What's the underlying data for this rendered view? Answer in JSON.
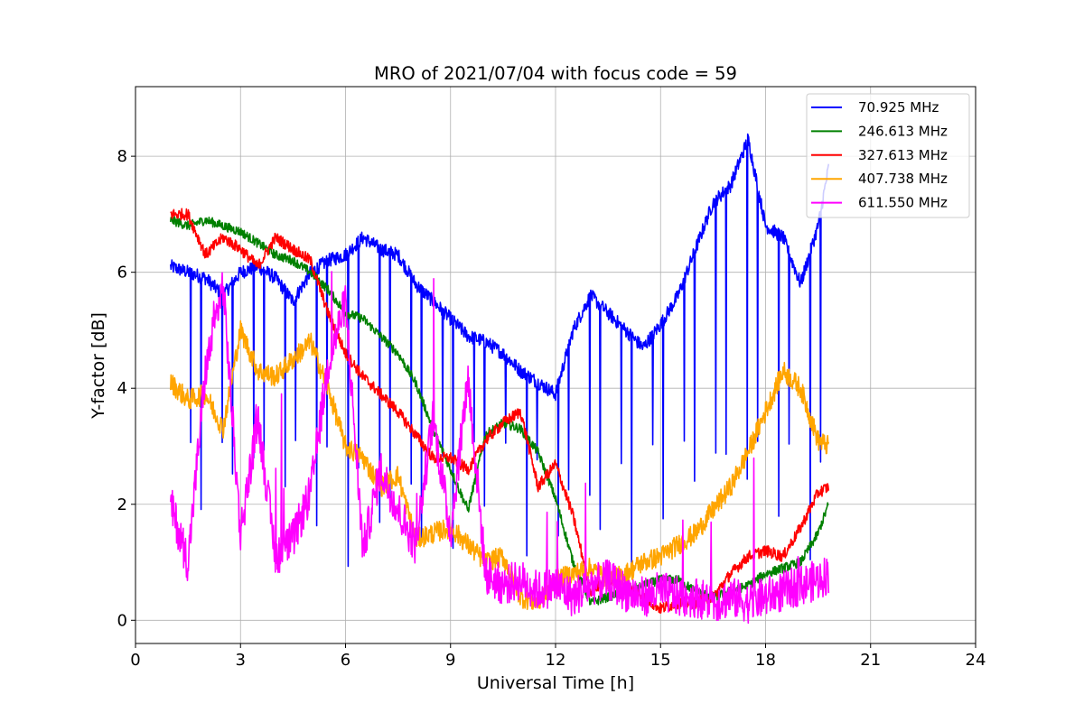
{
  "chart_data": {
    "type": "line",
    "title": "MRO of 2021/07/04 with focus code = 59",
    "xlabel": "Universal Time [h]",
    "ylabel": "Y-factor [dB]",
    "xlim": [
      0,
      24
    ],
    "ylim": [
      -0.4,
      9.2
    ],
    "xticks": [
      0,
      3,
      6,
      9,
      12,
      15,
      18,
      21,
      24
    ],
    "yticks": [
      0,
      2,
      4,
      6,
      8
    ],
    "grid": true,
    "legend_position": "upper-right",
    "series": [
      {
        "name": " 70.925 MHz",
        "color": "#0000ff",
        "dropouts": true,
        "x": [
          1.0,
          1.5,
          2.0,
          2.5,
          3.0,
          3.5,
          4.0,
          4.5,
          5.0,
          5.5,
          6.0,
          6.5,
          7.0,
          7.5,
          8.0,
          8.5,
          9.0,
          9.5,
          10.0,
          10.5,
          11.0,
          11.5,
          12.0,
          12.5,
          13.0,
          13.5,
          14.0,
          14.5,
          15.0,
          15.5,
          16.0,
          16.5,
          17.0,
          17.5,
          18.0,
          18.5,
          19.0,
          19.5,
          19.8
        ],
        "y": [
          6.1,
          6.0,
          5.9,
          5.6,
          6.0,
          6.1,
          5.9,
          5.5,
          6.0,
          6.2,
          6.3,
          6.6,
          6.4,
          6.3,
          5.8,
          5.5,
          5.2,
          4.9,
          4.8,
          4.6,
          4.3,
          4.1,
          3.9,
          5.0,
          5.6,
          5.3,
          5.0,
          4.7,
          5.1,
          5.6,
          6.4,
          7.2,
          7.5,
          8.3,
          6.8,
          6.6,
          5.8,
          6.8,
          7.8
        ]
      },
      {
        "name": "246.613 MHz",
        "color": "#008000",
        "x": [
          1.0,
          1.5,
          2.0,
          2.5,
          3.0,
          3.5,
          4.0,
          4.5,
          5.0,
          5.5,
          6.0,
          6.5,
          7.0,
          7.5,
          8.0,
          8.5,
          9.0,
          9.5,
          10.0,
          10.5,
          11.0,
          11.5,
          12.0,
          12.5,
          13.0,
          13.5,
          14.0,
          14.5,
          15.0,
          15.5,
          16.0,
          16.5,
          17.0,
          17.5,
          18.0,
          18.5,
          19.0,
          19.5,
          19.8
        ],
        "y": [
          6.9,
          6.8,
          6.9,
          6.8,
          6.7,
          6.5,
          6.3,
          6.2,
          6.0,
          5.7,
          5.3,
          5.2,
          4.9,
          4.6,
          4.1,
          3.3,
          2.6,
          1.9,
          3.2,
          3.4,
          3.3,
          2.9,
          2.1,
          1.0,
          0.3,
          0.4,
          0.5,
          0.6,
          0.7,
          0.7,
          0.5,
          0.4,
          0.5,
          0.6,
          0.8,
          0.9,
          1.0,
          1.5,
          2.0
        ]
      },
      {
        "name": "327.613 MHz",
        "color": "#ff0000",
        "x": [
          1.0,
          1.5,
          2.0,
          2.5,
          3.0,
          3.5,
          4.0,
          4.5,
          5.0,
          5.5,
          6.0,
          6.5,
          7.0,
          7.5,
          8.0,
          8.5,
          9.0,
          9.5,
          10.0,
          10.5,
          11.0,
          11.5,
          12.0,
          12.5,
          13.0,
          13.5,
          14.0,
          14.5,
          15.0,
          15.5,
          16.0,
          16.5,
          17.0,
          17.5,
          18.0,
          18.5,
          19.0,
          19.5,
          19.8
        ],
        "y": [
          7.0,
          7.0,
          6.3,
          6.6,
          6.4,
          6.1,
          6.6,
          6.4,
          6.2,
          5.3,
          4.6,
          4.2,
          3.9,
          3.6,
          3.2,
          2.8,
          2.8,
          2.6,
          3.1,
          3.4,
          3.6,
          2.3,
          2.7,
          1.8,
          0.5,
          0.7,
          0.6,
          0.4,
          0.2,
          0.3,
          0.3,
          0.4,
          0.8,
          1.1,
          1.2,
          1.1,
          1.6,
          2.2,
          2.3
        ]
      },
      {
        "name": "407.738 MHz",
        "color": "#ffa500",
        "x": [
          1.0,
          1.5,
          2.0,
          2.5,
          3.0,
          3.5,
          4.0,
          4.5,
          5.0,
          5.5,
          6.0,
          6.5,
          7.0,
          7.5,
          8.0,
          8.5,
          9.0,
          9.5,
          10.0,
          10.5,
          11.0,
          11.5,
          12.0,
          12.5,
          13.0,
          13.5,
          14.0,
          14.5,
          15.0,
          15.5,
          16.0,
          16.5,
          17.0,
          17.5,
          18.0,
          18.5,
          19.0,
          19.5,
          19.8
        ],
        "y": [
          4.1,
          3.8,
          3.9,
          3.3,
          5.0,
          4.3,
          4.2,
          4.5,
          4.8,
          4.0,
          3.0,
          2.8,
          2.3,
          2.5,
          1.4,
          1.5,
          1.6,
          1.3,
          1.0,
          1.1,
          0.4,
          0.3,
          0.7,
          0.8,
          0.9,
          0.7,
          0.8,
          1.0,
          1.1,
          1.3,
          1.5,
          1.9,
          2.3,
          2.9,
          3.6,
          4.3,
          4.0,
          3.1,
          3.0
        ]
      },
      {
        "name": "611.550 MHz",
        "color": "#ff00ff",
        "x": [
          1.0,
          1.5,
          2.0,
          2.5,
          3.0,
          3.5,
          4.0,
          4.5,
          5.0,
          5.5,
          6.0,
          6.5,
          7.0,
          7.5,
          8.0,
          8.5,
          9.0,
          9.5,
          10.0,
          10.5,
          11.0,
          11.5,
          12.0,
          12.5,
          13.0,
          13.5,
          14.0,
          14.5,
          15.0,
          15.5,
          16.0,
          16.5,
          17.0,
          17.5,
          18.0,
          18.5,
          19.0,
          19.5,
          19.8
        ],
        "y": [
          2.0,
          1.0,
          4.3,
          5.8,
          1.5,
          3.5,
          1.1,
          1.4,
          2.2,
          4.4,
          5.5,
          1.2,
          2.6,
          1.9,
          1.3,
          3.5,
          1.5,
          4.2,
          0.8,
          0.6,
          0.7,
          0.5,
          0.6,
          0.4,
          0.6,
          0.7,
          0.5,
          0.4,
          0.5,
          0.4,
          0.4,
          0.3,
          0.4,
          0.3,
          0.4,
          0.5,
          0.6,
          0.7,
          0.8
        ]
      }
    ]
  }
}
